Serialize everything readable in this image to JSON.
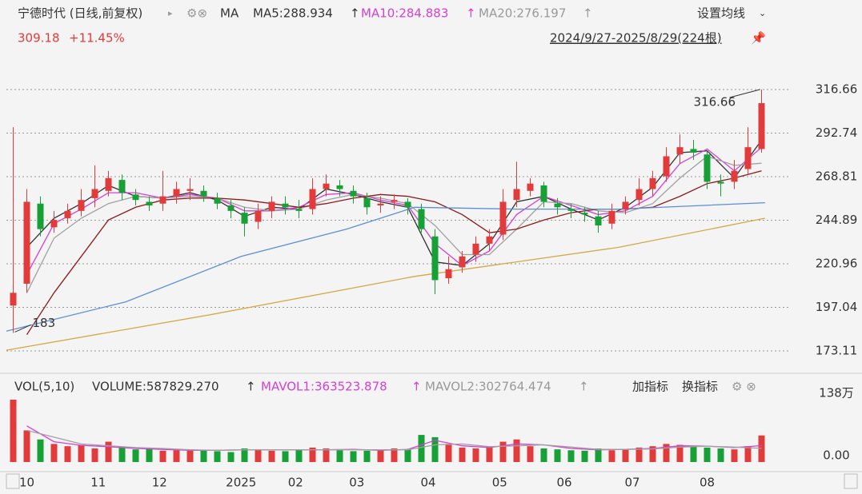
{
  "chart_data": [
    {
      "type": "candlestick",
      "title": "宁德时代 (日线,前复权)",
      "indicator": "MA",
      "settings": "设置均线",
      "range": "2024/9/27-2025/8/29(224根)",
      "change": "+11.45%",
      "up_color": "#e23b3b",
      "down_color": "#16a036",
      "xlim": [
        0,
        224
      ],
      "ylim": [
        163.0,
        337.3
      ],
      "yticks": [
        316.66,
        292.74,
        268.81,
        244.89,
        220.96,
        197.04,
        173.11
      ],
      "grid": true,
      "x": [
        2,
        6,
        10,
        14,
        18,
        22,
        26,
        30,
        34,
        38,
        42,
        46,
        50,
        54,
        58,
        62,
        66,
        70,
        74,
        78,
        82,
        86,
        90,
        94,
        98,
        102,
        106,
        110,
        114,
        118,
        122,
        126,
        130,
        134,
        138,
        142,
        146,
        150,
        154,
        158,
        162,
        166,
        170,
        174,
        178,
        182,
        186,
        190,
        194,
        198,
        202,
        206,
        210,
        214,
        218,
        222
      ],
      "open": [
        198,
        210,
        254,
        241,
        246,
        250,
        257,
        261,
        267,
        259,
        255,
        254,
        258,
        261,
        261,
        257,
        253,
        249,
        244,
        250,
        254,
        251,
        251,
        262,
        264,
        261,
        257,
        253,
        255,
        255,
        251,
        236,
        213,
        219,
        226,
        232,
        237,
        256,
        261,
        264,
        254,
        251,
        249,
        247,
        243,
        251,
        256,
        262,
        269,
        281,
        284,
        281,
        266,
        266,
        273,
        284
      ],
      "high": [
        296,
        262,
        258,
        250,
        254,
        262,
        275,
        272,
        270,
        262,
        258,
        272,
        266,
        268,
        264,
        260,
        256,
        252,
        254,
        258,
        258,
        256,
        268,
        270,
        267,
        264,
        260,
        258,
        259,
        257,
        254,
        240,
        225,
        228,
        236,
        240,
        262,
        277,
        268,
        266,
        257,
        254,
        252,
        250,
        254,
        258,
        268,
        272,
        285,
        292,
        289,
        283,
        270,
        278,
        296,
        316.66
      ],
      "low": [
        183,
        205,
        236,
        238,
        243,
        247,
        252,
        258,
        256,
        253,
        250,
        250,
        254,
        256,
        255,
        251,
        246,
        236,
        240,
        246,
        248,
        246,
        248,
        258,
        258,
        254,
        248,
        249,
        251,
        248,
        238,
        204.27,
        210,
        216,
        222,
        228,
        234,
        252,
        258,
        252,
        248,
        246,
        244,
        238,
        240,
        248,
        253,
        258,
        266,
        276,
        278,
        262,
        258,
        262,
        270,
        282
      ],
      "close": [
        205,
        255,
        240,
        245,
        250,
        256,
        262,
        268,
        260,
        256,
        253,
        258,
        262,
        262,
        258,
        254,
        250,
        243,
        250,
        255,
        252,
        250,
        262,
        265,
        262,
        258,
        252,
        254,
        256,
        252,
        240,
        212,
        218,
        225,
        232,
        236,
        255,
        262,
        265,
        255,
        252,
        250,
        248,
        242,
        250,
        255,
        262,
        268,
        280,
        285,
        282,
        266,
        265,
        272,
        285,
        309.18
      ],
      "lines": [
        {
          "name": "MA5:288.934",
          "color": "#333333",
          "x": [
            6,
            14,
            22,
            30,
            38,
            46,
            54,
            62,
            70,
            78,
            86,
            94,
            102,
            110,
            118,
            126,
            134,
            142,
            150,
            158,
            166,
            174,
            182,
            190,
            198,
            206,
            214,
            222
          ],
          "values": [
            230,
            246,
            254,
            264,
            258,
            257,
            260,
            256,
            247,
            252,
            251,
            262,
            259,
            255,
            252,
            222,
            220,
            232,
            255,
            258,
            251,
            245,
            252,
            263,
            282,
            283,
            268,
            288.934
          ]
        },
        {
          "name": "MA10:284.883",
          "color": "#d63fd3",
          "x": [
            6,
            14,
            22,
            30,
            38,
            46,
            54,
            62,
            70,
            78,
            86,
            94,
            102,
            110,
            118,
            126,
            134,
            142,
            150,
            158,
            166,
            174,
            182,
            190,
            198,
            206,
            214,
            222
          ],
          "values": [
            215,
            243,
            251,
            260,
            260,
            257,
            259,
            257,
            250,
            250,
            252,
            259,
            260,
            256,
            253,
            232,
            220,
            228,
            248,
            258,
            253,
            248,
            250,
            258,
            276,
            284,
            272,
            284.883
          ]
        },
        {
          "name": "MA20:276.197",
          "color": "#a0a0a0",
          "x": [
            6,
            14,
            22,
            30,
            38,
            46,
            54,
            62,
            70,
            78,
            86,
            94,
            102,
            110,
            118,
            126,
            134,
            142,
            150,
            158,
            166,
            174,
            182,
            190,
            198,
            206,
            214,
            222
          ],
          "values": [
            205,
            235,
            246,
            254,
            258,
            257,
            258,
            257,
            252,
            250,
            251,
            256,
            259,
            257,
            254,
            242,
            226,
            226,
            240,
            255,
            254,
            250,
            249,
            254,
            268,
            280,
            275,
            276.197
          ]
        },
        {
          "color": "#8b1a1a",
          "x": [
            6,
            14,
            22,
            30,
            38,
            46,
            54,
            62,
            70,
            78,
            86,
            94,
            102,
            110,
            118,
            126,
            134,
            142,
            150,
            158,
            166,
            174,
            182,
            190,
            198,
            206,
            214,
            222
          ],
          "values": [
            182,
            205,
            225,
            245,
            252,
            256,
            257,
            257,
            256,
            254,
            252,
            254,
            257,
            259,
            258,
            255,
            248,
            238,
            240,
            245,
            249,
            251,
            251,
            252,
            258,
            265,
            268,
            272
          ]
        },
        {
          "color": "#5b8fd6",
          "x": [
            0,
            35,
            69,
            100,
            120,
            150,
            180,
            223
          ],
          "values": [
            184,
            200,
            225,
            240,
            252,
            251,
            251,
            254.5
          ]
        },
        {
          "color": "#d4a845",
          "x": [
            0,
            60,
            120,
            180,
            223
          ],
          "values": [
            173.5,
            193,
            214,
            230,
            246
          ]
        }
      ]
    },
    {
      "type": "bar",
      "title": "VOL(5,10)",
      "volume_label": "VOLUME:587829.270",
      "buttons": [
        "加指标",
        "换指标"
      ],
      "xlim": [
        0,
        224
      ],
      "ylim": [
        0,
        155.7
      ],
      "yticks": [
        {
          "value": 138,
          "label": "138万"
        },
        {
          "value": 0,
          "label": "0.00"
        }
      ],
      "xticks": [
        {
          "value": 6,
          "label": "10"
        },
        {
          "value": 27,
          "label": "11"
        },
        {
          "value": 45,
          "label": "12"
        },
        {
          "value": 69,
          "label": "2025"
        },
        {
          "value": 85,
          "label": "02"
        },
        {
          "value": 103,
          "label": "03"
        },
        {
          "value": 124,
          "label": "04"
        },
        {
          "value": 145,
          "label": "05"
        },
        {
          "value": 164,
          "label": "06"
        },
        {
          "value": 184,
          "label": "07"
        },
        {
          "value": 206,
          "label": "08"
        }
      ],
      "values": [
        138,
        70,
        50,
        40,
        35,
        38,
        30,
        45,
        32,
        28,
        30,
        25,
        26,
        28,
        25,
        24,
        22,
        30,
        26,
        25,
        24,
        28,
        32,
        30,
        26,
        24,
        25,
        26,
        30,
        28,
        60,
        55,
        40,
        32,
        30,
        35,
        45,
        50,
        35,
        30,
        28,
        26,
        25,
        30,
        26,
        28,
        32,
        35,
        40,
        38,
        35,
        32,
        30,
        28,
        35,
        58.8
      ],
      "lines": [
        {
          "name": "MAVOL1:363523.878",
          "color": "#d63fd3",
          "x": [
            6,
            14,
            22,
            30,
            38,
            46,
            54,
            62,
            70,
            78,
            86,
            94,
            102,
            110,
            118,
            126,
            134,
            142,
            150,
            158,
            166,
            174,
            182,
            190,
            198,
            206,
            214,
            222
          ],
          "values": [
            80,
            45,
            37,
            34,
            30,
            28,
            26,
            26,
            27,
            27,
            27,
            27,
            28,
            26,
            28,
            48,
            36,
            32,
            40,
            38,
            30,
            27,
            28,
            30,
            36,
            35,
            32,
            36.35
          ]
        },
        {
          "name": "MAVOL2:302764.474",
          "color": "#a0a0a0",
          "x": [
            6,
            14,
            22,
            30,
            38,
            46,
            54,
            62,
            70,
            78,
            86,
            94,
            102,
            110,
            118,
            126,
            134,
            142,
            150,
            158,
            166,
            174,
            182,
            190,
            198,
            206,
            214,
            222
          ],
          "values": [
            70,
            55,
            40,
            36,
            32,
            30,
            27,
            26,
            27,
            27,
            27,
            27,
            27,
            27,
            27,
            38,
            40,
            34,
            36,
            38,
            33,
            28,
            28,
            29,
            33,
            35,
            33,
            30.28
          ]
        }
      ]
    }
  ]
}
